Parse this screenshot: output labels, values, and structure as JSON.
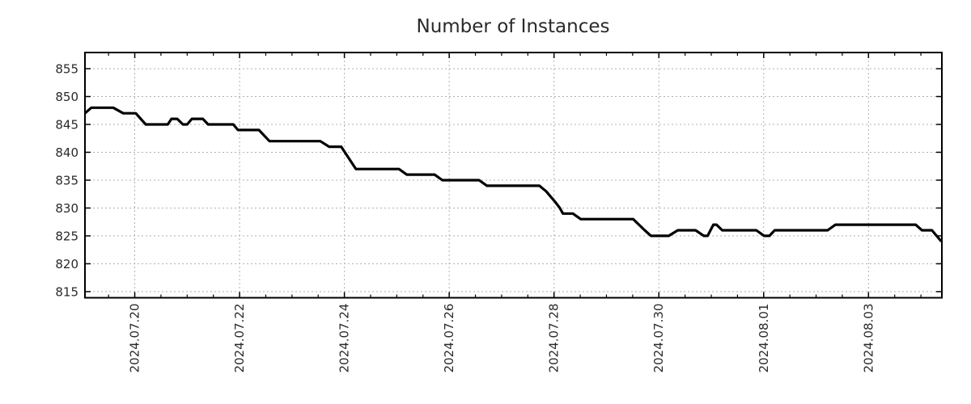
{
  "chart_data": {
    "type": "line",
    "title": "Number of Instances",
    "xlabel": "",
    "ylabel": "",
    "grid": true,
    "legend": "none",
    "x_unit": "days since 2024-07-19 00:00",
    "x_range": [
      0.05,
      16.4
    ],
    "y_range": [
      813.9,
      857.9
    ],
    "y_ticks": [
      {
        "value": 815,
        "label": "815"
      },
      {
        "value": 820,
        "label": "820"
      },
      {
        "value": 825,
        "label": "825"
      },
      {
        "value": 830,
        "label": "830"
      },
      {
        "value": 835,
        "label": "835"
      },
      {
        "value": 840,
        "label": "840"
      },
      {
        "value": 845,
        "label": "845"
      },
      {
        "value": 850,
        "label": "850"
      },
      {
        "value": 855,
        "label": "855"
      }
    ],
    "x_major_ticks": [
      {
        "t": 1,
        "label": "2024.07.20"
      },
      {
        "t": 3,
        "label": "2024.07.22"
      },
      {
        "t": 5,
        "label": "2024.07.24"
      },
      {
        "t": 7,
        "label": "2024.07.26"
      },
      {
        "t": 9,
        "label": "2024.07.28"
      },
      {
        "t": 11,
        "label": "2024.07.30"
      },
      {
        "t": 13,
        "label": "2024.08.01"
      },
      {
        "t": 15,
        "label": "2024.08.03"
      }
    ],
    "x_minor_step": 0.5,
    "series": [
      {
        "name": "instances",
        "color": "#000000",
        "points": [
          [
            0.05,
            847
          ],
          [
            0.17,
            848
          ],
          [
            0.59,
            848
          ],
          [
            0.78,
            847
          ],
          [
            1.02,
            847
          ],
          [
            1.21,
            845
          ],
          [
            1.63,
            845
          ],
          [
            1.7,
            846
          ],
          [
            1.81,
            846
          ],
          [
            1.92,
            845
          ],
          [
            2.0,
            845
          ],
          [
            2.09,
            846
          ],
          [
            2.3,
            846
          ],
          [
            2.4,
            845
          ],
          [
            2.88,
            845
          ],
          [
            2.97,
            844
          ],
          [
            3.37,
            844
          ],
          [
            3.57,
            842
          ],
          [
            4.54,
            842
          ],
          [
            4.71,
            841
          ],
          [
            4.94,
            841
          ],
          [
            5.22,
            837
          ],
          [
            6.04,
            837
          ],
          [
            6.19,
            836
          ],
          [
            6.72,
            836
          ],
          [
            6.87,
            835
          ],
          [
            7.57,
            835
          ],
          [
            7.72,
            834
          ],
          [
            8.72,
            834
          ],
          [
            8.85,
            833
          ],
          [
            8.94,
            832
          ],
          [
            9.03,
            831
          ],
          [
            9.11,
            830
          ],
          [
            9.17,
            829
          ],
          [
            9.36,
            829
          ],
          [
            9.51,
            828
          ],
          [
            10.51,
            828
          ],
          [
            10.73,
            826
          ],
          [
            10.85,
            825
          ],
          [
            11.19,
            825
          ],
          [
            11.36,
            826
          ],
          [
            11.7,
            826
          ],
          [
            11.86,
            825
          ],
          [
            11.93,
            825
          ],
          [
            12.04,
            827
          ],
          [
            12.1,
            827
          ],
          [
            12.21,
            826
          ],
          [
            12.86,
            826
          ],
          [
            13.01,
            825
          ],
          [
            13.11,
            825
          ],
          [
            13.21,
            826
          ],
          [
            14.22,
            826
          ],
          [
            14.37,
            827
          ],
          [
            15.9,
            827
          ],
          [
            16.02,
            826
          ],
          [
            16.21,
            826
          ],
          [
            16.3,
            825
          ],
          [
            16.39,
            824
          ]
        ]
      }
    ]
  },
  "layout_colors": {
    "grid": "#b0b0b0",
    "axis": "#000000",
    "text": "#2a2a2a",
    "background": "#ffffff"
  }
}
